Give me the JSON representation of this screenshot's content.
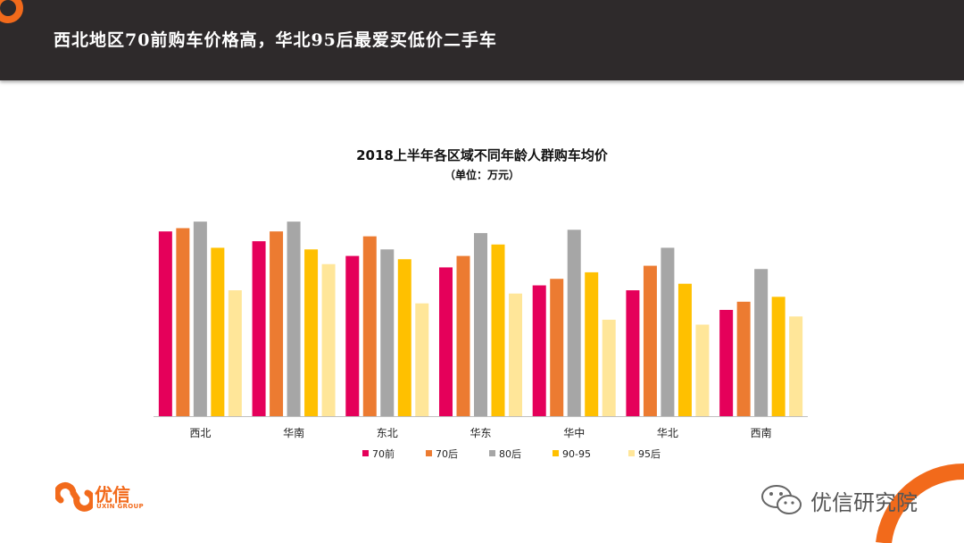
{
  "header": {
    "headline": "西北地区70前购车价格高，华北95后最爱买低价二手车"
  },
  "brand": {
    "name": "优信",
    "sub": "UXIN GROUP"
  },
  "wechat": {
    "name": "优信研究院",
    "icon": "wechat-icon"
  },
  "colors": {
    "header_bg": "#2e2a2b",
    "accent": "#f26a1b"
  },
  "chart_data": {
    "type": "bar",
    "title": "2018上半年各区域不同年龄人群购车均价",
    "subtitle": "（单位：万元）",
    "categories": [
      "西北",
      "华南",
      "东北",
      "华东",
      "华中",
      "华北",
      "西南"
    ],
    "series": [
      {
        "name": "70前",
        "color": "#e5005a",
        "values": [
          11.3,
          10.7,
          9.8,
          9.1,
          8.0,
          7.7,
          6.5
        ]
      },
      {
        "name": "70后",
        "color": "#ec7b31",
        "values": [
          11.5,
          11.3,
          11.0,
          9.8,
          8.4,
          9.2,
          7.0
        ]
      },
      {
        "name": "80后",
        "color": "#a6a6a6",
        "values": [
          11.9,
          11.9,
          10.2,
          11.2,
          11.4,
          10.3,
          9.0
        ]
      },
      {
        "name": "90-95",
        "color": "#ffc000",
        "values": [
          10.3,
          10.2,
          9.6,
          10.5,
          8.8,
          8.1,
          7.3
        ]
      },
      {
        "name": "95后",
        "color": "#ffe699",
        "values": [
          7.7,
          9.3,
          6.9,
          7.5,
          5.9,
          5.6,
          6.1
        ]
      }
    ],
    "ylim": [
      0,
      13
    ],
    "grid": false,
    "legend": "bottom"
  }
}
